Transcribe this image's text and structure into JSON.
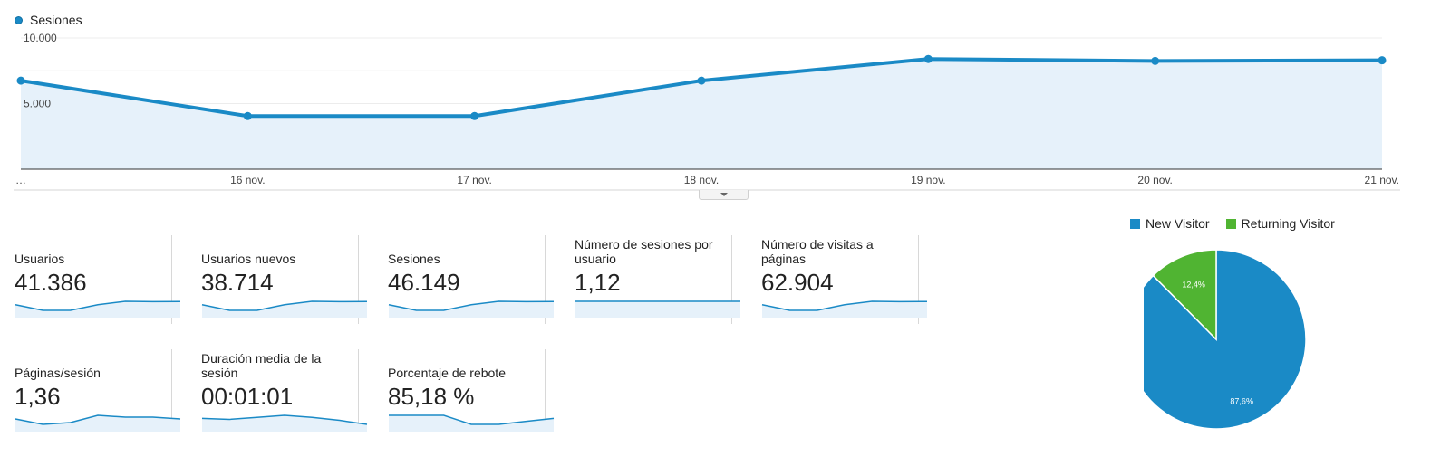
{
  "legend": {
    "series_label": "Sesiones",
    "series_color": "#1a8ac6"
  },
  "chart_data": {
    "type": "area",
    "series": [
      {
        "name": "Sesiones",
        "values": [
          6750,
          4050,
          4050,
          6750,
          8400,
          8250,
          8300
        ]
      }
    ],
    "categories": [
      "…",
      "16 nov.",
      "17 nov.",
      "18 nov.",
      "19 nov.",
      "20 nov.",
      "21 nov."
    ],
    "y_ticks": [
      "10.000",
      "5.000"
    ],
    "ylim": [
      0,
      10000
    ],
    "grid": true,
    "line_color": "#1a8ac6",
    "fill_color": "#e6f1fa"
  },
  "metrics": [
    {
      "label": "Usuarios",
      "value": "41.386",
      "spark": [
        6750,
        4050,
        4050,
        6750,
        8400,
        8250,
        8300
      ]
    },
    {
      "label": "Usuarios nuevos",
      "value": "38.714",
      "spark": [
        6750,
        4050,
        4050,
        6750,
        8400,
        8250,
        8300
      ]
    },
    {
      "label": "Sesiones",
      "value": "46.149",
      "spark": [
        6750,
        4050,
        4050,
        6750,
        8400,
        8250,
        8300
      ]
    },
    {
      "label": "Número de sesiones por usuario",
      "value": "1,12",
      "spark": [
        1.12,
        1.12,
        1.12,
        1.12,
        1.12,
        1.12,
        1.12
      ]
    },
    {
      "label": "Número de visitas a páginas",
      "value": "62.904",
      "spark": [
        6750,
        4050,
        4050,
        6750,
        8400,
        8250,
        8300
      ]
    },
    {
      "label": "Páginas/sesión",
      "value": "1,36",
      "spark": [
        1.38,
        1.35,
        1.36,
        1.4,
        1.39,
        1.39,
        1.38
      ]
    },
    {
      "label": "Duración media de la sesión",
      "value": "00:01:01",
      "spark": [
        62,
        61,
        63,
        65,
        63,
        60,
        56
      ]
    },
    {
      "label": "Porcentaje de rebote",
      "value": "85,18 %",
      "spark": [
        85.5,
        85.5,
        85.5,
        85.2,
        85.2,
        85.3,
        85.4
      ]
    }
  ],
  "pie": {
    "legend": [
      {
        "name": "New Visitor",
        "color": "#1a8ac6"
      },
      {
        "name": "Returning Visitor",
        "color": "#50b432"
      }
    ],
    "slices": [
      {
        "name": "New Visitor",
        "value": 87.6,
        "label": "87,6%",
        "color": "#1a8ac6"
      },
      {
        "name": "Returning Visitor",
        "value": 12.4,
        "label": "12,4%",
        "color": "#50b432"
      }
    ]
  }
}
